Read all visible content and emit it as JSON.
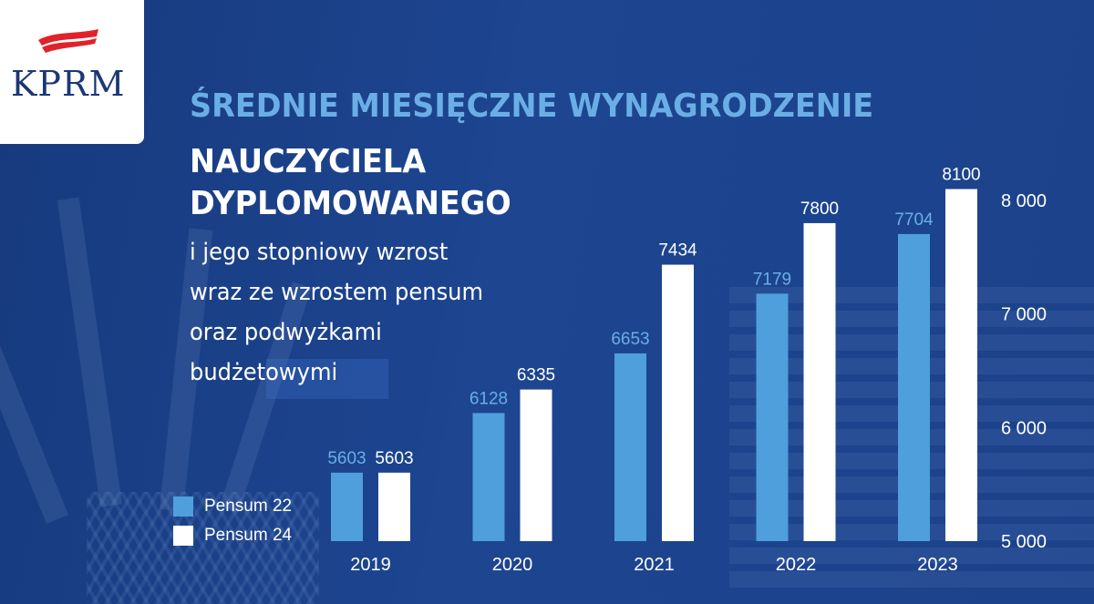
{
  "logo": {
    "text": "KPRM"
  },
  "heading": {
    "line1": "ŚREDNIE MIESIĘCZNE WYNAGRODZENIE",
    "line2a": "NAUCZYCIELA",
    "line2b": "DYPLOMOWANEGO"
  },
  "subheading": {
    "lines": [
      "i jego stopniowy wzrost",
      "wraz ze wzrostem pensum",
      "oraz podwyżkami",
      "budżetowymi"
    ]
  },
  "colors": {
    "pensum22": "#4e9fdc",
    "pensum24": "#ffffff",
    "value22": "#6aaee6",
    "value24": "#ffffff"
  },
  "chart_data": {
    "type": "bar",
    "categories": [
      "2019",
      "2020",
      "2021",
      "2022",
      "2023"
    ],
    "series": [
      {
        "name": "Pensum 22",
        "values": [
          5603,
          6128,
          6653,
          7179,
          7704
        ]
      },
      {
        "name": "Pensum 24",
        "values": [
          5603,
          6335,
          7434,
          7800,
          8100
        ]
      }
    ],
    "ylim": [
      5000,
      8000
    ],
    "y_ticks": [
      5000,
      6000,
      7000,
      8000
    ],
    "y_tick_labels": [
      "5 000",
      "6 000",
      "7 000",
      "8 000"
    ],
    "legend_position": "left",
    "grid": false
  }
}
